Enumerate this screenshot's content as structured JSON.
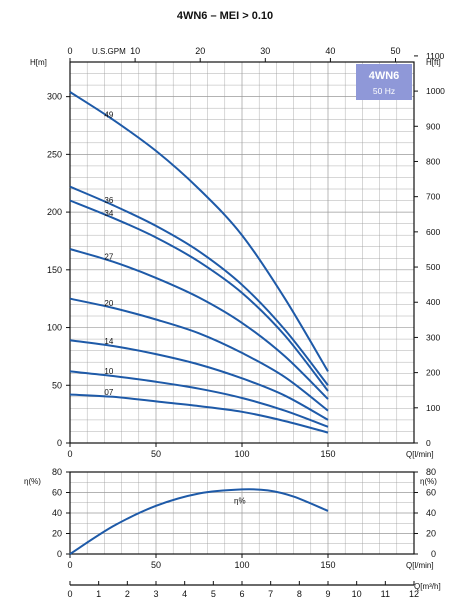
{
  "title": "4WN6 – MEI > 0.10",
  "badge": {
    "model": "4WN6",
    "frequency": "50 Hz",
    "color": "#8f98d8"
  },
  "colors": {
    "curve": "#1e5aa8",
    "grid": "#9a9a9a",
    "axis": "#111111"
  },
  "chart_data": [
    {
      "type": "line",
      "title": "4WN6 – MEI > 0.10",
      "x_unit": "Q[l/min]",
      "xlim": [
        0,
        200
      ],
      "x_ticks": [
        0,
        50,
        100,
        150
      ],
      "y_left_label": "H[m]",
      "ylim": [
        0,
        330
      ],
      "y_left_ticks": [
        0,
        50,
        100,
        150,
        200,
        250,
        300
      ],
      "y_right_label": "H[ft]",
      "y_right_ticks": [
        0,
        100,
        200,
        300,
        400,
        500,
        600,
        700,
        800,
        900,
        1000,
        1100
      ],
      "top_axis_label": "U.S.GPM",
      "top_axis_ticks": [
        0,
        10,
        20,
        30,
        40,
        50
      ],
      "grid": true,
      "series": [
        {
          "name": "49",
          "x": [
            0,
            25,
            50,
            75,
            100,
            125,
            150
          ],
          "values": [
            304,
            280,
            253,
            220,
            180,
            125,
            62
          ]
        },
        {
          "name": "36",
          "x": [
            0,
            25,
            50,
            75,
            100,
            125,
            150
          ],
          "values": [
            222,
            206,
            188,
            166,
            137,
            98,
            50
          ]
        },
        {
          "name": "34",
          "x": [
            0,
            25,
            50,
            75,
            100,
            125,
            150
          ],
          "values": [
            210,
            195,
            178,
            157,
            130,
            93,
            45
          ]
        },
        {
          "name": "27",
          "x": [
            0,
            25,
            50,
            75,
            100,
            125,
            150
          ],
          "values": [
            168,
            157,
            143,
            126,
            104,
            75,
            38
          ]
        },
        {
          "name": "20",
          "x": [
            0,
            25,
            50,
            75,
            100,
            125,
            150
          ],
          "values": [
            125,
            117,
            107,
            95,
            78,
            57,
            28
          ]
        },
        {
          "name": "14",
          "x": [
            0,
            25,
            50,
            75,
            100,
            125,
            150
          ],
          "values": [
            89,
            84,
            77,
            68,
            56,
            41,
            20
          ]
        },
        {
          "name": "10",
          "x": [
            0,
            25,
            50,
            75,
            100,
            125,
            150
          ],
          "values": [
            62,
            58,
            53,
            47,
            39,
            28,
            14
          ]
        },
        {
          "name": "07",
          "x": [
            0,
            25,
            50,
            75,
            100,
            125,
            150
          ],
          "values": [
            42,
            40,
            36,
            32,
            27,
            19,
            9
          ]
        }
      ]
    },
    {
      "type": "line",
      "x_unit": "Q[l/min]",
      "xlim": [
        0,
        200
      ],
      "x_ticks": [
        0,
        50,
        100,
        150
      ],
      "y_left_label": "η(%)",
      "y_right_label": "η(%)",
      "ylim": [
        0,
        80
      ],
      "y_ticks": [
        0,
        20,
        40,
        60,
        80
      ],
      "bottom_axis_label": "Q[m³/h]",
      "bottom_axis_ticks": [
        0,
        1,
        2,
        3,
        4,
        5,
        6,
        7,
        8,
        9,
        10,
        11,
        12
      ],
      "grid": true,
      "series": [
        {
          "name": "η%",
          "x": [
            0,
            25,
            50,
            75,
            100,
            115,
            130,
            150
          ],
          "values": [
            0,
            27,
            47,
            59,
            63,
            62,
            56,
            42
          ]
        }
      ]
    }
  ]
}
